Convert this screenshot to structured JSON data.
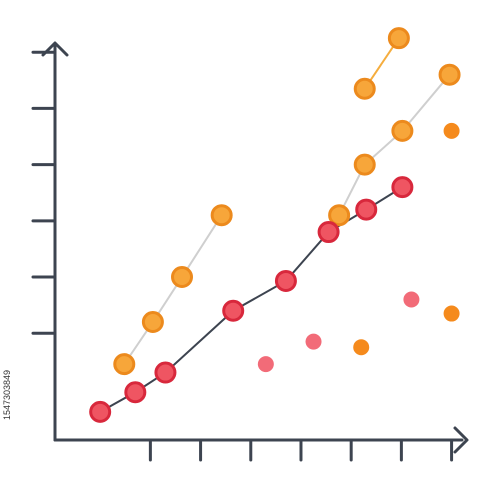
{
  "watermark": {
    "id_text": "1547303849"
  },
  "chart_data": {
    "type": "scatter",
    "title": "",
    "xlabel": "",
    "ylabel": "",
    "x_ticks": [
      1,
      2,
      3,
      4,
      5,
      6,
      7
    ],
    "y_ticks": [
      1,
      2,
      3,
      4,
      5,
      6
    ],
    "xlim": [
      -0.9,
      8.2
    ],
    "ylim": [
      -0.9,
      6.9
    ],
    "grid": false,
    "axis_color": "#3d4450",
    "series": [
      {
        "style": "line-markers",
        "line_color": "#cfcfcf",
        "marker_fill": "#f7a63a",
        "marker_stroke": "#ec8a1d",
        "points": [
          [
            0.48,
            0.45
          ],
          [
            1.05,
            1.2
          ],
          [
            1.63,
            2.0
          ],
          [
            2.42,
            3.1
          ]
        ]
      },
      {
        "style": "line-markers",
        "line_color": "#f5ad3e",
        "marker_fill": "#f7a63a",
        "marker_stroke": "#ec8a1d",
        "points": [
          [
            5.27,
            5.35
          ],
          [
            5.95,
            6.25
          ]
        ]
      },
      {
        "style": "line-markers",
        "line_color": "#cfcfcf",
        "marker_fill": "#f7a63a",
        "marker_stroke": "#ec8a1d",
        "points": [
          [
            4.76,
            3.1
          ],
          [
            5.27,
            4.0
          ],
          [
            6.02,
            4.6
          ],
          [
            6.96,
            5.6
          ]
        ]
      },
      {
        "style": "line-markers",
        "line_color": "#3d4450",
        "marker_fill": "#ef5562",
        "marker_stroke": "#d8283c",
        "points": [
          [
            0.0,
            -0.4
          ],
          [
            0.7,
            -0.05
          ],
          [
            1.3,
            0.3
          ],
          [
            2.65,
            1.4
          ],
          [
            3.7,
            1.93
          ],
          [
            4.55,
            2.8
          ],
          [
            5.3,
            3.2
          ],
          [
            6.02,
            3.6
          ]
        ]
      },
      {
        "style": "markers",
        "marker_fill": "#f26b78",
        "points": [
          [
            3.3,
            0.45
          ],
          [
            4.25,
            0.85
          ],
          [
            6.2,
            1.6
          ]
        ]
      },
      {
        "style": "markers",
        "marker_fill": "#f58a1c",
        "points": [
          [
            5.2,
            0.75
          ],
          [
            7.0,
            1.35
          ],
          [
            7.0,
            4.6
          ]
        ]
      }
    ]
  }
}
